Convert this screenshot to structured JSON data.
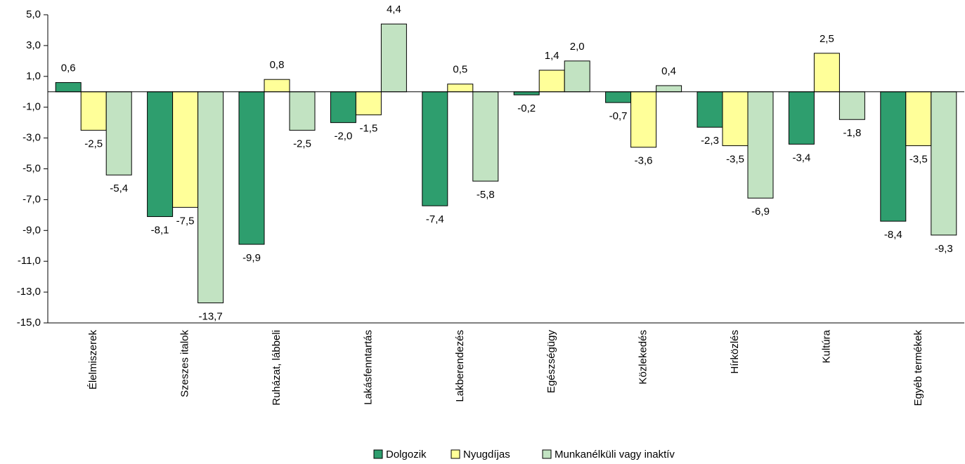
{
  "chart_data": {
    "type": "bar",
    "categories": [
      "Élelmiszerek",
      "Szeszes italok",
      "Ruházat, lábbeli",
      "Lakásfenntartás",
      "Lakberendezés",
      "Egészségügy",
      "Közlekedés",
      "Hírközlés",
      "Kultúra",
      "Egyéb termékek"
    ],
    "series": [
      {
        "name": "Dolgozik",
        "color": "#2e9e6e",
        "values": [
          0.6,
          -8.1,
          -9.9,
          -2.0,
          -7.4,
          -0.2,
          -0.7,
          -2.3,
          -3.4,
          -8.4
        ],
        "value_labels": [
          "0,6",
          "-8,1",
          "-9,9",
          "-2,0",
          "-7,4",
          "-0,2",
          "-0,7",
          "-2,3",
          "-3,4",
          "-8,4"
        ]
      },
      {
        "name": "Nyugdíjas",
        "color": "#ffff99",
        "values": [
          -2.5,
          -7.5,
          0.8,
          -1.5,
          0.5,
          1.4,
          -3.6,
          -3.5,
          2.5,
          -3.5
        ],
        "value_labels": [
          "-2,5",
          "-7,5",
          "0,8",
          "-1,5",
          "0,5",
          "1,4",
          "-3,6",
          "-3,5",
          "2,5",
          "-3,5"
        ]
      },
      {
        "name": "Munkanélküli vagy inaktív",
        "color": "#c2e3c2",
        "values": [
          -5.4,
          -13.7,
          -2.5,
          4.4,
          -5.8,
          2.0,
          0.4,
          -6.9,
          -1.8,
          -9.3
        ],
        "value_labels": [
          "-5,4",
          "-13,7",
          "-2,5",
          "4,4",
          "-5,8",
          "2,0",
          "0,4",
          "-6,9",
          "-1,8",
          "-9,3"
        ]
      }
    ],
    "ylim": [
      -15,
      5
    ],
    "yticks": [
      {
        "value": 5,
        "label": "5,0"
      },
      {
        "value": 3,
        "label": "3,0"
      },
      {
        "value": 1,
        "label": "1,0"
      },
      {
        "value": -1,
        "label": "-1,0"
      },
      {
        "value": -3,
        "label": "-3,0"
      },
      {
        "value": -5,
        "label": "-5,0"
      },
      {
        "value": -7,
        "label": "-7,0"
      },
      {
        "value": -9,
        "label": "-9,0"
      },
      {
        "value": -11,
        "label": "-11,0"
      },
      {
        "value": -13,
        "label": "-13,0"
      },
      {
        "value": -15,
        "label": "-15,0"
      }
    ],
    "legend": "bottom"
  }
}
